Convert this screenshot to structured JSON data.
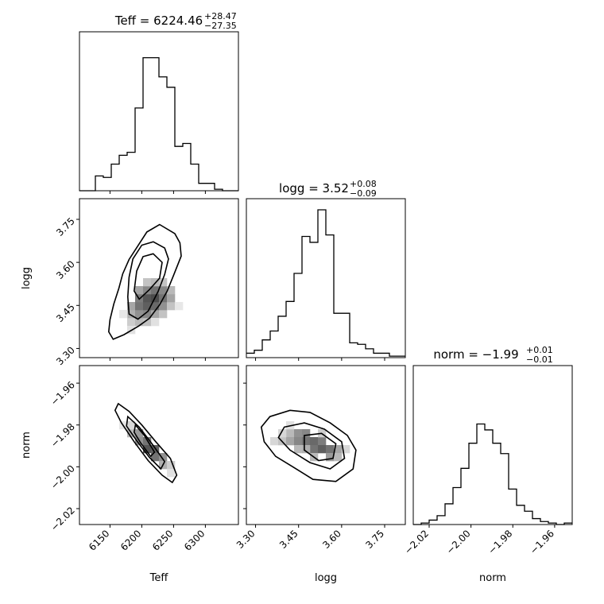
{
  "chart_data": {
    "type": "corner",
    "parameters": [
      {
        "name": "Teff",
        "title_value": "6224.46",
        "title_plus": "+28.47",
        "title_minus": "−27.35",
        "range": [
          6102,
          6352
        ],
        "ticks": [
          "6150",
          "6200",
          "6250",
          "6300"
        ]
      },
      {
        "name": "logg",
        "title_value": "3.52",
        "title_plus": "+0.08",
        "title_minus": "−0.09",
        "range": [
          3.268,
          3.822
        ],
        "ticks": [
          "3.30",
          "3.45",
          "3.60",
          "3.75"
        ]
      },
      {
        "name": "norm",
        "title_value": "−1.99",
        "title_plus": "+0.01",
        "title_minus": "−0.01",
        "range": [
          -2.0276,
          -1.9516
        ],
        "ticks": [
          "−2.02",
          "−2.00",
          "−1.98",
          "−1.96"
        ]
      }
    ],
    "titles": {
      "teff": {
        "name": "Teff",
        "eq": " = ",
        "value": "6224.46",
        "plus": "+28.47",
        "minus": "−27.35"
      },
      "logg": {
        "name": "logg",
        "eq": " = ",
        "value": "3.52",
        "plus": "+0.08",
        "minus": "−0.09"
      },
      "norm": {
        "name": "norm",
        "eq": " = ",
        "value": "−1.99",
        "plus": "+0.01",
        "minus": "−0.01"
      }
    },
    "axis_labels": {
      "teff": "Teff",
      "logg": "logg",
      "norm": "norm"
    },
    "histograms": {
      "teff": {
        "edges_start": 6102,
        "bin_width": 12.5,
        "counts": [
          0,
          0,
          0.1,
          0.09,
          0.18,
          0.24,
          0.26,
          0.56,
          0.9,
          0.9,
          0.77,
          0.7,
          0.3,
          0.32,
          0.18,
          0.05,
          0.05,
          0.01,
          0,
          0
        ]
      },
      "logg": {
        "edges_start": 3.268,
        "bin_width": 0.0277,
        "counts": [
          0.03,
          0.05,
          0.12,
          0.18,
          0.28,
          0.38,
          0.57,
          0.82,
          0.78,
          1.0,
          0.83,
          0.3,
          0.3,
          0.1,
          0.09,
          0.06,
          0.03,
          0.03,
          0.01,
          0.01
        ]
      },
      "norm": {
        "edges_start": -2.0276,
        "bin_width": 0.0038,
        "counts": [
          0,
          0.01,
          0.03,
          0.06,
          0.14,
          0.25,
          0.38,
          0.55,
          0.68,
          0.64,
          0.55,
          0.48,
          0.24,
          0.13,
          0.09,
          0.04,
          0.02,
          0.01,
          0,
          0.01
        ]
      }
    },
    "density_2d": [
      {
        "x": "teff",
        "y": "logg",
        "xmin": 6102,
        "xmax": 6352,
        "ymin": 3.268,
        "ymax": 3.822,
        "nx": 20,
        "ny": 20,
        "cells": [
          [
            6,
            4,
            0.25
          ],
          [
            7,
            4,
            0.35
          ],
          [
            8,
            4,
            0.3
          ],
          [
            6,
            5,
            0.4
          ],
          [
            7,
            5,
            0.55
          ],
          [
            8,
            5,
            0.6
          ],
          [
            9,
            5,
            0.45
          ],
          [
            10,
            5,
            0.3
          ],
          [
            6,
            6,
            0.45
          ],
          [
            7,
            6,
            0.7
          ],
          [
            8,
            6,
            0.8
          ],
          [
            9,
            6,
            0.75
          ],
          [
            10,
            6,
            0.55
          ],
          [
            11,
            6,
            0.3
          ],
          [
            7,
            7,
            0.65
          ],
          [
            8,
            7,
            0.85
          ],
          [
            9,
            7,
            0.9
          ],
          [
            10,
            7,
            0.7
          ],
          [
            11,
            7,
            0.45
          ],
          [
            7,
            8,
            0.45
          ],
          [
            8,
            8,
            0.6
          ],
          [
            9,
            8,
            0.7
          ],
          [
            10,
            8,
            0.6
          ],
          [
            11,
            8,
            0.35
          ],
          [
            8,
            9,
            0.3
          ],
          [
            9,
            9,
            0.35
          ],
          [
            10,
            9,
            0.3
          ],
          [
            6,
            3,
            0.15
          ],
          [
            9,
            4,
            0.15
          ],
          [
            5,
            5,
            0.12
          ],
          [
            12,
            6,
            0.12
          ]
        ]
      },
      {
        "x": "teff",
        "y": "norm",
        "xmin": 6102,
        "xmax": 6352,
        "ymin": -2.0276,
        "ymax": -1.9516,
        "nx": 20,
        "ny": 20,
        "cells": [
          [
            6,
            11,
            0.35
          ],
          [
            7,
            11,
            0.5
          ],
          [
            7,
            10,
            0.55
          ],
          [
            8,
            10,
            0.7
          ],
          [
            8,
            9,
            0.85
          ],
          [
            9,
            9,
            0.8
          ],
          [
            9,
            8,
            0.7
          ],
          [
            10,
            8,
            0.55
          ],
          [
            10,
            7,
            0.4
          ],
          [
            11,
            7,
            0.25
          ],
          [
            6,
            12,
            0.2
          ],
          [
            11,
            6,
            0.15
          ],
          [
            5,
            12,
            0.12
          ]
        ]
      },
      {
        "x": "logg",
        "y": "norm",
        "xmin": 3.268,
        "xmax": 3.822,
        "ymin": -2.0276,
        "ymax": -1.9516,
        "nx": 20,
        "ny": 20,
        "cells": [
          [
            3,
            10,
            0.2
          ],
          [
            4,
            10,
            0.3
          ],
          [
            5,
            11,
            0.35
          ],
          [
            5,
            10,
            0.45
          ],
          [
            6,
            11,
            0.55
          ],
          [
            6,
            10,
            0.6
          ],
          [
            7,
            11,
            0.6
          ],
          [
            7,
            10,
            0.7
          ],
          [
            8,
            10,
            0.75
          ],
          [
            8,
            9,
            0.7
          ],
          [
            9,
            10,
            0.65
          ],
          [
            9,
            9,
            0.8
          ],
          [
            10,
            9,
            0.7
          ],
          [
            10,
            8,
            0.5
          ],
          [
            11,
            9,
            0.45
          ],
          [
            11,
            8,
            0.35
          ],
          [
            12,
            9,
            0.2
          ],
          [
            6,
            9,
            0.35
          ],
          [
            7,
            9,
            0.4
          ],
          [
            8,
            8,
            0.35
          ],
          [
            5,
            12,
            0.15
          ],
          [
            9,
            11,
            0.25
          ],
          [
            4,
            11,
            0.2
          ]
        ]
      }
    ],
    "contours": [
      {
        "x": "teff",
        "y": "logg",
        "levels": [
          [
            [
              6228,
              3.732
            ],
            [
              6252,
              3.7
            ],
            [
              6260,
              3.668
            ],
            [
              6262,
              3.622
            ],
            [
              6250,
              3.555
            ],
            [
              6240,
              3.5
            ],
            [
              6228,
              3.452
            ],
            [
              6212,
              3.405
            ],
            [
              6195,
              3.378
            ],
            [
              6172,
              3.348
            ],
            [
              6155,
              3.332
            ],
            [
              6148,
              3.358
            ],
            [
              6150,
              3.4
            ],
            [
              6156,
              3.455
            ],
            [
              6164,
              3.51
            ],
            [
              6170,
              3.56
            ],
            [
              6180,
              3.61
            ],
            [
              6194,
              3.658
            ],
            [
              6208,
              3.706
            ],
            [
              6228,
              3.732
            ]
          ],
          [
            [
              6218,
              3.672
            ],
            [
              6236,
              3.65
            ],
            [
              6242,
              3.612
            ],
            [
              6236,
              3.558
            ],
            [
              6226,
              3.5
            ],
            [
              6210,
              3.43
            ],
            [
              6194,
              3.402
            ],
            [
              6180,
              3.42
            ],
            [
              6178,
              3.48
            ],
            [
              6180,
              3.548
            ],
            [
              6186,
              3.612
            ],
            [
              6200,
              3.66
            ],
            [
              6218,
              3.672
            ]
          ],
          [
            [
              6218,
              3.63
            ],
            [
              6232,
              3.6
            ],
            [
              6228,
              3.545
            ],
            [
              6212,
              3.505
            ],
            [
              6196,
              3.472
            ],
            [
              6188,
              3.5
            ],
            [
              6192,
              3.57
            ],
            [
              6202,
              3.62
            ],
            [
              6218,
              3.63
            ]
          ]
        ]
      },
      {
        "x": "teff",
        "y": "norm",
        "levels": [
          [
            [
              6163,
              -1.9698
            ],
            [
              6180,
              -1.9735
            ],
            [
              6200,
              -1.98
            ],
            [
              6222,
              -1.988
            ],
            [
              6245,
              -1.996
            ],
            [
              6255,
              -2.004
            ],
            [
              6248,
              -2.0075
            ],
            [
              6232,
              -2.004
            ],
            [
              6210,
              -1.997
            ],
            [
              6188,
              -1.988
            ],
            [
              6168,
              -1.979
            ],
            [
              6158,
              -1.973
            ],
            [
              6163,
              -1.9698
            ]
          ],
          [
            [
              6178,
              -1.976
            ],
            [
              6196,
              -1.981
            ],
            [
              6216,
              -1.989
            ],
            [
              6236,
              -1.9975
            ],
            [
              6230,
              -2.001
            ],
            [
              6212,
              -1.9955
            ],
            [
              6192,
              -1.9875
            ],
            [
              6176,
              -1.9805
            ],
            [
              6178,
              -1.976
            ]
          ],
          [
            [
              6190,
              -1.98
            ],
            [
              6204,
              -1.985
            ],
            [
              6220,
              -1.993
            ],
            [
              6214,
              -1.995
            ],
            [
              6198,
              -1.9885
            ],
            [
              6188,
              -1.9835
            ],
            [
              6190,
              -1.98
            ]
          ]
        ]
      },
      {
        "x": "logg",
        "y": "norm",
        "levels": [
          [
            [
              3.35,
              -1.976
            ],
            [
              3.42,
              -1.973
            ],
            [
              3.49,
              -1.974
            ],
            [
              3.56,
              -1.979
            ],
            [
              3.62,
              -1.985
            ],
            [
              3.65,
              -1.992
            ],
            [
              3.64,
              -2.001
            ],
            [
              3.58,
              -2.007
            ],
            [
              3.5,
              -2.006
            ],
            [
              3.43,
              -2.0
            ],
            [
              3.37,
              -1.995
            ],
            [
              3.33,
              -1.988
            ],
            [
              3.32,
              -1.981
            ],
            [
              3.35,
              -1.976
            ]
          ],
          [
            [
              3.4,
              -1.981
            ],
            [
              3.47,
              -1.979
            ],
            [
              3.54,
              -1.982
            ],
            [
              3.6,
              -1.988
            ],
            [
              3.61,
              -1.996
            ],
            [
              3.56,
              -2.001
            ],
            [
              3.49,
              -1.998
            ],
            [
              3.42,
              -1.992
            ],
            [
              3.38,
              -1.986
            ],
            [
              3.4,
              -1.981
            ]
          ],
          [
            [
              3.47,
              -1.985
            ],
            [
              3.53,
              -1.984
            ],
            [
              3.58,
              -1.989
            ],
            [
              3.57,
              -1.996
            ],
            [
              3.52,
              -1.997
            ],
            [
              3.47,
              -1.992
            ],
            [
              3.47,
              -1.985
            ]
          ]
        ]
      }
    ]
  }
}
